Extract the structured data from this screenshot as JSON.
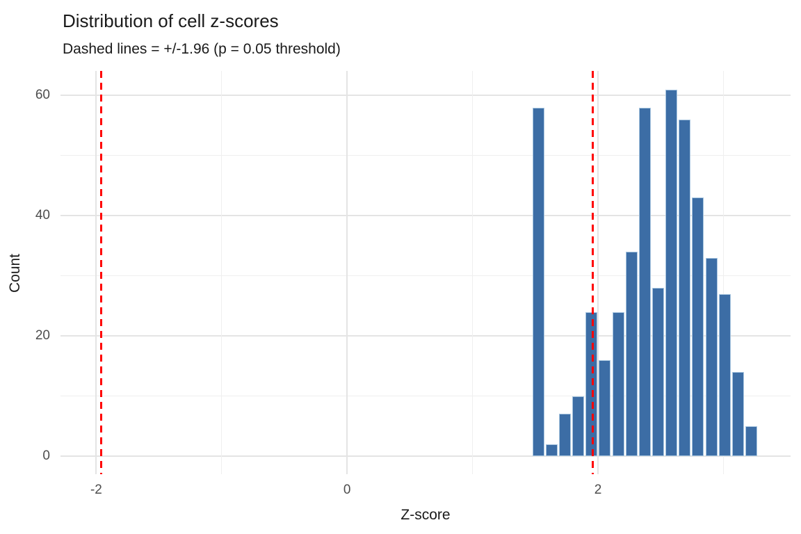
{
  "chart_data": {
    "type": "bar",
    "subtype": "histogram",
    "title": "Distribution of cell z-scores",
    "subtitle": "Dashed lines = +/-1.96 (p = 0.05 threshold)",
    "xlabel": "Z-score",
    "ylabel": "Count",
    "x_ticks": [
      -2,
      0,
      2
    ],
    "x_minor_ticks": [
      -1,
      1,
      3
    ],
    "y_ticks": [
      0,
      20,
      40,
      60
    ],
    "y_minor_ticks": [
      10,
      30,
      50
    ],
    "xlim": [
      -2.28,
      3.51
    ],
    "ylim": [
      -3,
      64.1
    ],
    "grid": true,
    "legend": false,
    "bin_width": 0.106,
    "bin_centers": [
      1.524,
      1.63,
      1.737,
      1.843,
      1.949,
      2.055,
      2.161,
      2.267,
      2.373,
      2.48,
      2.586,
      2.692,
      2.798,
      2.904,
      3.011,
      3.117,
      3.223
    ],
    "counts": [
      58,
      2,
      7,
      10,
      24,
      16,
      24,
      34,
      58,
      28,
      61,
      56,
      43,
      33,
      27,
      14,
      5
    ],
    "threshold_lines": [
      -1.96,
      1.96
    ],
    "colors": {
      "bar_fill": "#3c6da5",
      "bar_stroke": "#a8c6e0",
      "threshold": "#ff0000",
      "grid_major": "#e4e4e4",
      "grid_minor": "#efefef",
      "tick_label": "#4d4d4d",
      "text": "#1a1a1a",
      "background": "#ffffff"
    }
  }
}
